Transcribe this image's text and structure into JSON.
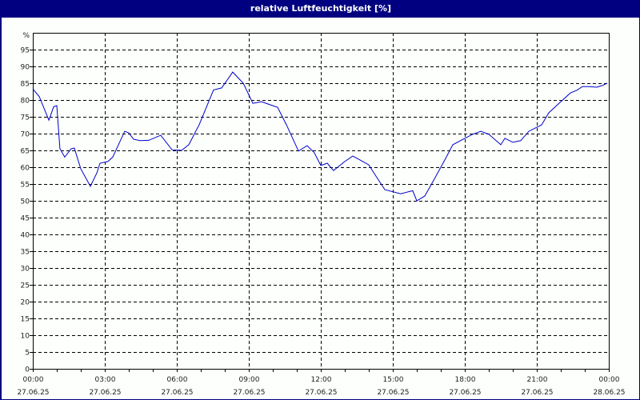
{
  "window": {
    "title": "relative Luftfeuchtigkeit [%]"
  },
  "colors": {
    "title_bar": "#000080",
    "background": "#fcfffc",
    "series": "#0000cc",
    "grid": "#000000",
    "axis": "#000000"
  },
  "chart_data": {
    "type": "line",
    "title": "relative Luftfeuchtigkeit [%]",
    "xlabel": "",
    "ylabel": "%",
    "ylim": [
      0,
      100
    ],
    "y_ticks": [
      0,
      5,
      10,
      15,
      20,
      25,
      30,
      35,
      40,
      45,
      50,
      55,
      60,
      65,
      70,
      75,
      80,
      85,
      90,
      95
    ],
    "x_tick_labels": [
      {
        "time": "00:00",
        "date": "27.06.25"
      },
      {
        "time": "03:00",
        "date": "27.06.25"
      },
      {
        "time": "06:00",
        "date": "27.06.25"
      },
      {
        "time": "09:00",
        "date": "27.06.25"
      },
      {
        "time": "12:00",
        "date": "27.06.25"
      },
      {
        "time": "15:00",
        "date": "27.06.25"
      },
      {
        "time": "18:00",
        "date": "27.06.25"
      },
      {
        "time": "21:00",
        "date": "27.06.25"
      },
      {
        "time": "00:00",
        "date": "28.06.25"
      }
    ],
    "grid": true,
    "legend": "none",
    "series": [
      {
        "name": "relative Luftfeuchtigkeit",
        "x_hours": [
          0,
          0.27,
          0.67,
          0.87,
          1.0,
          1.13,
          1.33,
          1.6,
          1.73,
          2.0,
          2.4,
          2.67,
          2.8,
          3.13,
          3.33,
          3.83,
          4.0,
          4.2,
          4.47,
          4.83,
          5.33,
          5.8,
          6.2,
          6.5,
          6.93,
          7.53,
          7.87,
          8.33,
          8.77,
          9.17,
          9.53,
          10.0,
          10.2,
          10.57,
          11.07,
          11.43,
          11.73,
          12.0,
          12.27,
          12.53,
          13.0,
          13.33,
          13.67,
          14.0,
          14.33,
          14.67,
          15.33,
          15.83,
          16.0,
          16.33,
          16.67,
          17.2,
          17.5,
          18.0,
          18.33,
          18.67,
          19.0,
          19.5,
          19.67,
          20.0,
          20.33,
          20.67,
          21.2,
          21.5,
          22.0,
          22.4,
          22.67,
          22.9,
          23.17,
          23.5,
          23.73,
          23.93
        ],
        "values": [
          83.3,
          81,
          74,
          78,
          78.3,
          65.5,
          63,
          65.5,
          65.7,
          59.5,
          54.3,
          58.3,
          61.2,
          61.7,
          63,
          70.7,
          70.2,
          68.3,
          67.9,
          68,
          69.5,
          65.2,
          65,
          66.7,
          72.6,
          83,
          83.6,
          88.3,
          85,
          79,
          79.5,
          78.3,
          77.8,
          72.6,
          64.8,
          66.4,
          64.3,
          60.5,
          61.2,
          59,
          61.7,
          63.3,
          62,
          60.7,
          57,
          53.3,
          52.1,
          53,
          50,
          51.4,
          55.7,
          62.6,
          66.7,
          68.6,
          69.8,
          70.7,
          69.8,
          66.7,
          68.6,
          67.4,
          67.9,
          70.7,
          72.6,
          76.2,
          79.5,
          82.1,
          82.9,
          84,
          84,
          83.8,
          84.3,
          85
        ]
      }
    ]
  }
}
